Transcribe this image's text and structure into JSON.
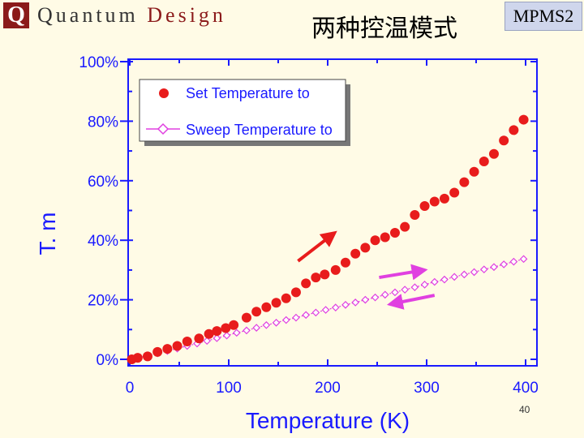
{
  "header": {
    "logo_mark": "Q",
    "logo_first": "Quantum",
    "logo_second": "Design",
    "title": "两种控温模式",
    "model_badge": "MPMS2"
  },
  "footer": {
    "page_number": "40"
  },
  "colors": {
    "background": "#fffbe6",
    "axis_text": "#1a1aff",
    "set_series": "#e81c1c",
    "sweep_series": "#e040e0",
    "arrow_red": "#e81c1c",
    "arrow_magenta": "#e040e0"
  },
  "chart_data": {
    "type": "scatter",
    "title": "",
    "xlabel": "Temperature (K)",
    "ylabel": "T. m",
    "xlim": [
      0,
      400
    ],
    "ylim": [
      0,
      100
    ],
    "x_ticks": [
      0,
      100,
      200,
      300,
      400
    ],
    "x_tick_labels": [
      "0",
      "100",
      "200",
      "300",
      "400"
    ],
    "y_ticks": [
      0,
      20,
      40,
      60,
      80,
      100
    ],
    "y_tick_labels": [
      "0%",
      "20%",
      "40%",
      "60%",
      "80%",
      "100%"
    ],
    "grid": false,
    "legend_position": "top-left",
    "series": [
      {
        "name": "Set Temperature to",
        "marker": "filled-circle",
        "color": "#e81c1c",
        "x": [
          2,
          8,
          18,
          28,
          38,
          48,
          58,
          70,
          80,
          88,
          97,
          105,
          118,
          128,
          138,
          148,
          158,
          168,
          178,
          188,
          197,
          208,
          218,
          228,
          238,
          248,
          258,
          268,
          278,
          288,
          298,
          308,
          318,
          328,
          338,
          348,
          358,
          368,
          378,
          388,
          398
        ],
        "y": [
          0,
          0.5,
          1,
          2.5,
          3.5,
          4.5,
          6,
          7,
          8.5,
          9.5,
          10.5,
          11.5,
          14,
          16,
          17.5,
          19,
          20.5,
          22.5,
          25.5,
          27.5,
          28.5,
          30,
          32.5,
          35.5,
          37.5,
          40,
          41,
          42.5,
          44.5,
          48.5,
          51.5,
          53,
          54,
          56,
          59.5,
          63,
          66.5,
          69,
          73.5,
          77,
          80.5
        ]
      },
      {
        "name": "Sweep Temperature to",
        "marker": "open-diamond",
        "color": "#e040e0",
        "x": [
          2,
          8,
          18,
          28,
          38,
          48,
          58,
          68,
          78,
          88,
          98,
          108,
          118,
          128,
          138,
          148,
          158,
          168,
          178,
          188,
          198,
          208,
          218,
          228,
          238,
          248,
          258,
          268,
          278,
          288,
          298,
          308,
          318,
          328,
          338,
          348,
          358,
          368,
          378,
          388,
          398
        ],
        "y": [
          0,
          0.5,
          1.2,
          2,
          2.8,
          3.6,
          4.5,
          5.3,
          6.2,
          7.1,
          8,
          8.9,
          9.7,
          10.6,
          11.5,
          12.3,
          13.2,
          14,
          14.9,
          15.7,
          16.6,
          17.4,
          18.3,
          19.1,
          20,
          20.8,
          21.7,
          22.5,
          23.4,
          24.2,
          25.1,
          26,
          26.8,
          27.7,
          28.5,
          29.3,
          30.2,
          31,
          31.9,
          32.8,
          33.7
        ]
      }
    ],
    "annotations": [
      {
        "type": "arrow",
        "color": "#e81c1c",
        "from": [
          170,
          33
        ],
        "to": [
          207,
          42.5
        ]
      },
      {
        "type": "arrow",
        "color": "#e040e0",
        "from": [
          252,
          27.5
        ],
        "to": [
          298,
          30
        ]
      },
      {
        "type": "arrow",
        "color": "#e040e0",
        "from": [
          308,
          21.5
        ],
        "to": [
          263,
          18.5
        ]
      }
    ]
  }
}
